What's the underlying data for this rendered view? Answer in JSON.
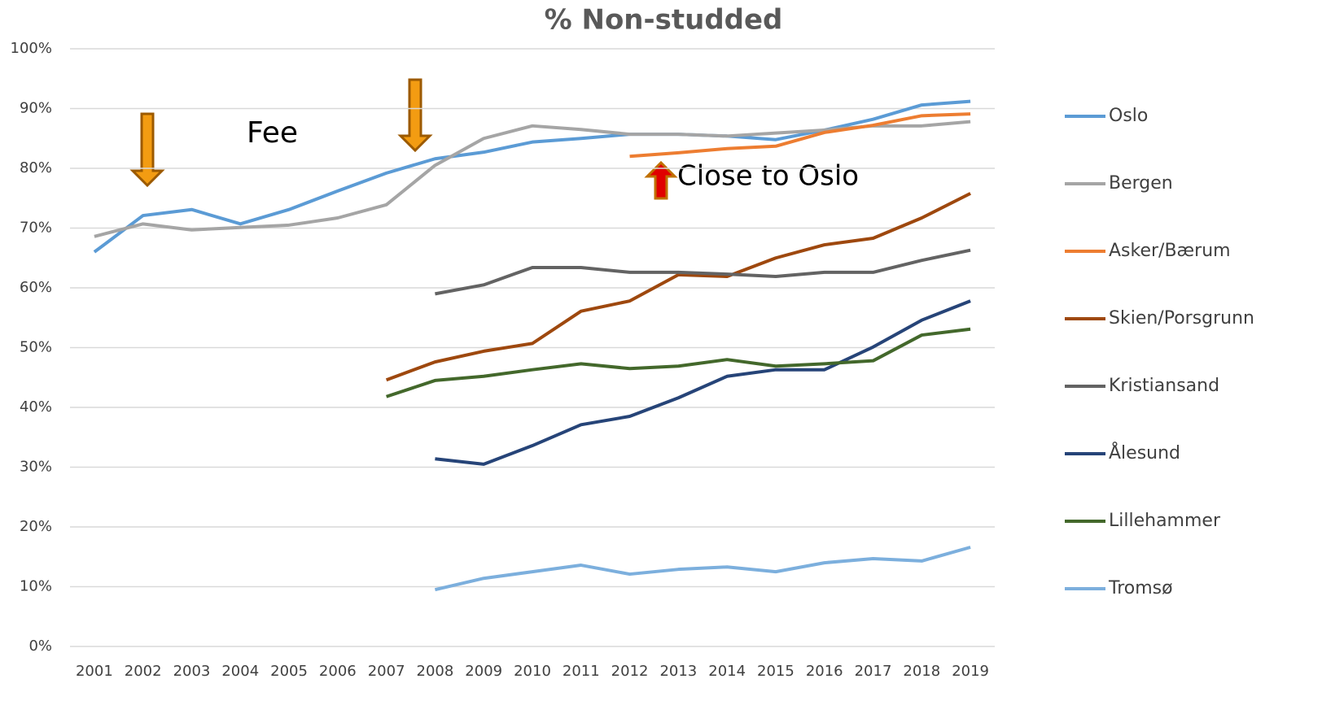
{
  "chart_data": {
    "type": "line",
    "title": "% Non-studded",
    "categories": [
      "2001",
      "2002",
      "2003",
      "2004",
      "2005",
      "2006",
      "2007",
      "2008",
      "2009",
      "2010",
      "2011",
      "2012",
      "2013",
      "2014",
      "2015",
      "2016",
      "2017",
      "2018",
      "2019"
    ],
    "ylim": [
      0,
      100
    ],
    "yticks": [
      {
        "value": 0,
        "label": "0%"
      },
      {
        "value": 10,
        "label": "10%"
      },
      {
        "value": 20,
        "label": "20%"
      },
      {
        "value": 30,
        "label": "30%"
      },
      {
        "value": 40,
        "label": "40%"
      },
      {
        "value": 50,
        "label": "50%"
      },
      {
        "value": 60,
        "label": "60%"
      },
      {
        "value": 70,
        "label": "70%"
      },
      {
        "value": 80,
        "label": "80%"
      },
      {
        "value": 90,
        "label": "90%"
      },
      {
        "value": 100,
        "label": "100%"
      }
    ],
    "grid": true,
    "legend": "right",
    "annotations": [
      "Fee",
      "Close to Oslo"
    ],
    "series": [
      {
        "name": "Oslo",
        "color": "#5b9bd5",
        "values": [
          66,
          72.1,
          73.1,
          70.7,
          73.1,
          76.2,
          79.2,
          81.6,
          82.7,
          84.4,
          85,
          85.7,
          85.7,
          85.4,
          84.8,
          86.4,
          88.2,
          90.6,
          91.2
        ]
      },
      {
        "name": "Bergen",
        "color": "#a5a5a5",
        "values": [
          68.6,
          70.7,
          69.7,
          70.1,
          70.5,
          71.7,
          73.9,
          80.5,
          85,
          87.1,
          86.5,
          85.7,
          85.7,
          85.4,
          85.9,
          86.4,
          87.1,
          87.1,
          87.8
        ]
      },
      {
        "name": "Asker/Bærum",
        "color": "#ed7d31",
        "values": [
          null,
          null,
          null,
          null,
          null,
          null,
          null,
          null,
          null,
          null,
          null,
          82,
          82.6,
          83.3,
          83.7,
          86,
          87.2,
          88.8,
          89.1
        ]
      },
      {
        "name": "Skien/Porsgrunn",
        "color": "#9e480e",
        "values": [
          null,
          null,
          null,
          null,
          null,
          null,
          44.6,
          47.6,
          49.4,
          50.7,
          56.1,
          57.8,
          62.2,
          61.9,
          65,
          67.2,
          68.3,
          71.7,
          75.8
        ]
      },
      {
        "name": "Kristiansand",
        "color": "#636363",
        "values": [
          null,
          null,
          null,
          null,
          null,
          null,
          null,
          59,
          60.5,
          63.4,
          63.4,
          62.6,
          62.6,
          62.3,
          61.9,
          62.6,
          62.6,
          64.6,
          66.3
        ]
      },
      {
        "name": "Ålesund",
        "color": "#264478",
        "values": [
          null,
          null,
          null,
          null,
          null,
          null,
          null,
          31.4,
          30.5,
          33.6,
          37.1,
          38.5,
          41.6,
          45.2,
          46.3,
          46.3,
          50.1,
          54.6,
          57.8
        ]
      },
      {
        "name": "Lillehammer",
        "color": "#43682b",
        "values": [
          null,
          null,
          null,
          null,
          null,
          null,
          41.8,
          44.5,
          45.2,
          46.3,
          47.3,
          46.5,
          46.9,
          48,
          46.9,
          47.3,
          47.8,
          52.1,
          53.1
        ]
      },
      {
        "name": "Tromsø",
        "color": "#7cafdd",
        "values": [
          null,
          null,
          null,
          null,
          null,
          null,
          null,
          9.5,
          11.4,
          12.5,
          13.6,
          12.1,
          12.9,
          13.3,
          12.5,
          14,
          14.7,
          14.3,
          16.6
        ]
      }
    ]
  }
}
